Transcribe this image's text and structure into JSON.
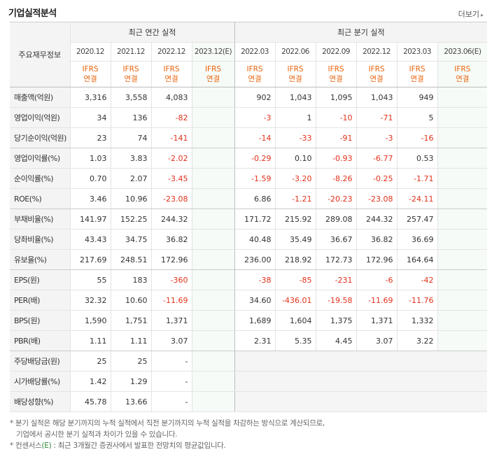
{
  "title": "기업실적분석",
  "more": "더보기",
  "more_arrow": "▸",
  "header": {
    "row_label": "주요재무정보",
    "annual_label": "최근 연간 실적",
    "quarter_label": "최근 분기 실적",
    "ifrs_line1": "IFRS",
    "ifrs_line2": "연결",
    "annual_years": [
      "2020.12",
      "2021.12",
      "2022.12",
      "2023.12(E)"
    ],
    "quarter_years": [
      "2022.03",
      "2022.06",
      "2022.09",
      "2022.12",
      "2023.03",
      "2023.06(E)"
    ]
  },
  "rows": [
    {
      "label": "매출액(억원)",
      "annual": [
        "3,316",
        "3,558",
        "4,083",
        ""
      ],
      "quarter": [
        "902",
        "1,043",
        "1,095",
        "1,043",
        "949",
        ""
      ]
    },
    {
      "label": "영업이익(억원)",
      "annual": [
        "34",
        "136",
        "-82",
        ""
      ],
      "quarter": [
        "-3",
        "1",
        "-10",
        "-71",
        "5",
        ""
      ]
    },
    {
      "label": "당기순이익(억원)",
      "annual": [
        "23",
        "74",
        "-141",
        ""
      ],
      "quarter": [
        "-14",
        "-33",
        "-91",
        "-3",
        "-16",
        ""
      ]
    },
    {
      "label": "영업이익률(%)",
      "annual": [
        "1.03",
        "3.83",
        "-2.02",
        ""
      ],
      "quarter": [
        "-0.29",
        "0.10",
        "-0.93",
        "-6.77",
        "0.53",
        ""
      ]
    },
    {
      "label": "순이익률(%)",
      "annual": [
        "0.70",
        "2.07",
        "-3.45",
        ""
      ],
      "quarter": [
        "-1.59",
        "-3.20",
        "-8.26",
        "-0.25",
        "-1.71",
        ""
      ]
    },
    {
      "label": "ROE(%)",
      "annual": [
        "3.46",
        "10.96",
        "-23.08",
        ""
      ],
      "quarter": [
        "6.86",
        "-1.21",
        "-20.23",
        "-23.08",
        "-24.11",
        ""
      ]
    },
    {
      "label": "부채비율(%)",
      "annual": [
        "141.97",
        "152.25",
        "244.32",
        ""
      ],
      "quarter": [
        "171.72",
        "215.92",
        "289.08",
        "244.32",
        "257.47",
        ""
      ]
    },
    {
      "label": "당좌비율(%)",
      "annual": [
        "43.43",
        "34.75",
        "36.82",
        ""
      ],
      "quarter": [
        "40.48",
        "35.49",
        "36.67",
        "36.82",
        "36.69",
        ""
      ]
    },
    {
      "label": "유보율(%)",
      "annual": [
        "217.69",
        "248.51",
        "172.96",
        ""
      ],
      "quarter": [
        "236.00",
        "218.92",
        "172.73",
        "172.96",
        "164.64",
        ""
      ]
    },
    {
      "label": "EPS(원)",
      "annual": [
        "55",
        "183",
        "-360",
        ""
      ],
      "quarter": [
        "-38",
        "-85",
        "-231",
        "-6",
        "-42",
        ""
      ]
    },
    {
      "label": "PER(배)",
      "annual": [
        "32.32",
        "10.60",
        "-11.69",
        ""
      ],
      "quarter": [
        "34.60",
        "-436.01",
        "-19.58",
        "-11.69",
        "-11.76",
        ""
      ]
    },
    {
      "label": "BPS(원)",
      "annual": [
        "1,590",
        "1,751",
        "1,371",
        ""
      ],
      "quarter": [
        "1,689",
        "1,604",
        "1,375",
        "1,371",
        "1,332",
        ""
      ]
    },
    {
      "label": "PBR(배)",
      "annual": [
        "1.11",
        "1.11",
        "3.07",
        ""
      ],
      "quarter": [
        "2.31",
        "5.35",
        "4.45",
        "3.07",
        "3.22",
        ""
      ]
    },
    {
      "label": "주당배당금(원)",
      "annual": [
        "25",
        "25",
        "-",
        ""
      ],
      "quarter": []
    },
    {
      "label": "시가배당률(%)",
      "annual": [
        "1.42",
        "1.29",
        "-",
        ""
      ],
      "quarter": []
    },
    {
      "label": "배당성향(%)",
      "annual": [
        "45.78",
        "13.66",
        "-",
        ""
      ],
      "quarter": []
    }
  ],
  "notes": {
    "line1": "* 분기 실적은 해당 분기까지의 누적 실적에서 직전 분기까지의 누적 실적을 차감하는 방식으로 계산되므로,",
    "line2": "기업에서 공시한 분기 실적과 차이가 있을 수 있습니다.",
    "line3_prefix": "* 컨센서스",
    "line3_e": "(E)",
    "line3_suffix": " : 최근 3개월간 증권사에서 발표한 전망치의 평균값입니다."
  },
  "colors": {
    "negative": "#e0321b",
    "ifrs": "#e8640c",
    "estimate_bg": "#f7fbf7"
  }
}
